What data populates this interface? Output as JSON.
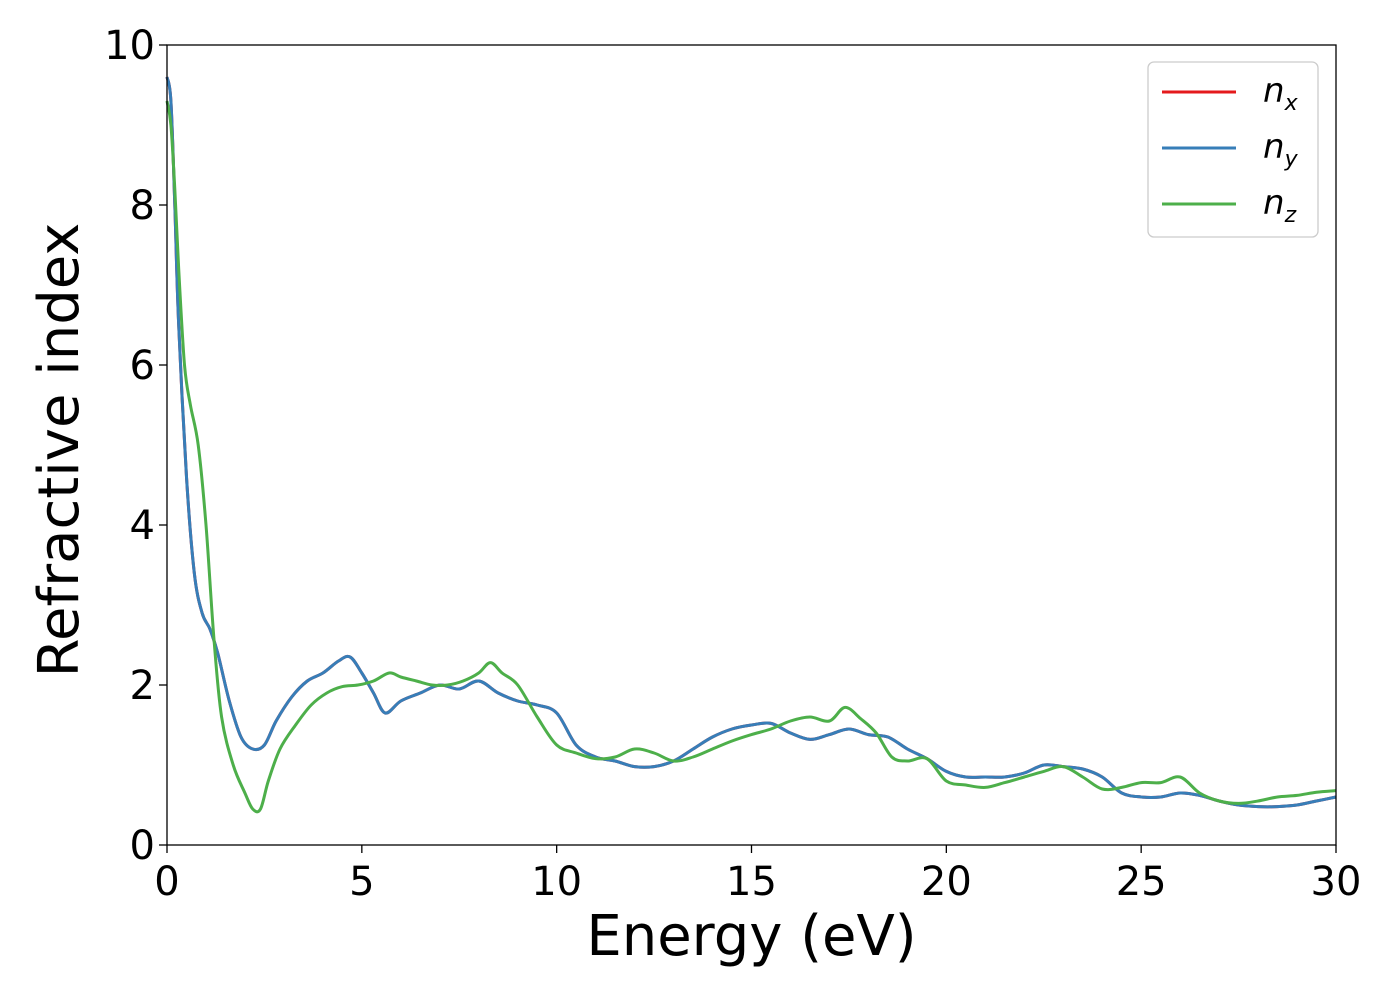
{
  "chart_data": {
    "type": "line",
    "xlabel": "Energy (eV)",
    "ylabel": "Refractive index",
    "xlim": [
      0,
      30
    ],
    "ylim": [
      0,
      10
    ],
    "xticks": [
      0,
      5,
      10,
      15,
      20,
      25,
      30
    ],
    "yticks": [
      0,
      2,
      4,
      6,
      8,
      10
    ],
    "grid": false,
    "legend_position": "top-right",
    "series": [
      {
        "name": "n",
        "subscript": "x",
        "color": "#e41a1c",
        "x": [
          0,
          0.1,
          0.2,
          0.3,
          0.5,
          0.7,
          0.9,
          1.1,
          1.3,
          1.6,
          1.9,
          2.2,
          2.5,
          2.8,
          3.2,
          3.6,
          4.0,
          4.4,
          4.7,
          5.0,
          5.3,
          5.6,
          6.0,
          6.5,
          7.0,
          7.5,
          8.0,
          8.5,
          9.0,
          9.5,
          10.0,
          10.5,
          11.0,
          11.5,
          12.0,
          12.5,
          13.0,
          13.5,
          14.0,
          14.5,
          15.0,
          15.5,
          16.0,
          16.5,
          17.0,
          17.5,
          18.0,
          18.5,
          19.0,
          19.5,
          20.0,
          20.5,
          21.0,
          21.5,
          22.0,
          22.5,
          23.0,
          23.5,
          24.0,
          24.5,
          25.0,
          25.5,
          26.0,
          26.5,
          27.0,
          27.5,
          28.0,
          28.5,
          29.0,
          29.5,
          30.0
        ],
        "y": [
          9.6,
          9.3,
          8.0,
          6.5,
          4.6,
          3.4,
          2.9,
          2.7,
          2.4,
          1.8,
          1.35,
          1.2,
          1.25,
          1.55,
          1.85,
          2.05,
          2.15,
          2.3,
          2.35,
          2.15,
          1.9,
          1.65,
          1.8,
          1.9,
          2.0,
          1.95,
          2.05,
          1.9,
          1.8,
          1.75,
          1.65,
          1.25,
          1.1,
          1.05,
          0.98,
          0.98,
          1.05,
          1.2,
          1.35,
          1.45,
          1.5,
          1.52,
          1.4,
          1.32,
          1.38,
          1.45,
          1.38,
          1.35,
          1.2,
          1.08,
          0.92,
          0.85,
          0.85,
          0.85,
          0.9,
          1.0,
          0.98,
          0.95,
          0.85,
          0.65,
          0.6,
          0.6,
          0.65,
          0.62,
          0.55,
          0.5,
          0.48,
          0.48,
          0.5,
          0.55,
          0.6
        ]
      },
      {
        "name": "n",
        "subscript": "y",
        "color": "#377eb8",
        "x": [
          0,
          0.1,
          0.2,
          0.3,
          0.5,
          0.7,
          0.9,
          1.1,
          1.3,
          1.6,
          1.9,
          2.2,
          2.5,
          2.8,
          3.2,
          3.6,
          4.0,
          4.4,
          4.7,
          5.0,
          5.3,
          5.6,
          6.0,
          6.5,
          7.0,
          7.5,
          8.0,
          8.5,
          9.0,
          9.5,
          10.0,
          10.5,
          11.0,
          11.5,
          12.0,
          12.5,
          13.0,
          13.5,
          14.0,
          14.5,
          15.0,
          15.5,
          16.0,
          16.5,
          17.0,
          17.5,
          18.0,
          18.5,
          19.0,
          19.5,
          20.0,
          20.5,
          21.0,
          21.5,
          22.0,
          22.5,
          23.0,
          23.5,
          24.0,
          24.5,
          25.0,
          25.5,
          26.0,
          26.5,
          27.0,
          27.5,
          28.0,
          28.5,
          29.0,
          29.5,
          30.0
        ],
        "y": [
          9.6,
          9.3,
          8.0,
          6.5,
          4.6,
          3.4,
          2.9,
          2.7,
          2.4,
          1.8,
          1.35,
          1.2,
          1.25,
          1.55,
          1.85,
          2.05,
          2.15,
          2.3,
          2.35,
          2.15,
          1.9,
          1.65,
          1.8,
          1.9,
          2.0,
          1.95,
          2.05,
          1.9,
          1.8,
          1.75,
          1.65,
          1.25,
          1.1,
          1.05,
          0.98,
          0.98,
          1.05,
          1.2,
          1.35,
          1.45,
          1.5,
          1.52,
          1.4,
          1.32,
          1.38,
          1.45,
          1.38,
          1.35,
          1.2,
          1.08,
          0.92,
          0.85,
          0.85,
          0.85,
          0.9,
          1.0,
          0.98,
          0.95,
          0.85,
          0.65,
          0.6,
          0.6,
          0.65,
          0.62,
          0.55,
          0.5,
          0.48,
          0.48,
          0.5,
          0.55,
          0.6
        ]
      },
      {
        "name": "n",
        "subscript": "z",
        "color": "#4daf4a",
        "x": [
          0,
          0.1,
          0.2,
          0.3,
          0.45,
          0.6,
          0.8,
          1.0,
          1.2,
          1.4,
          1.7,
          2.0,
          2.2,
          2.4,
          2.6,
          2.9,
          3.3,
          3.7,
          4.1,
          4.5,
          4.9,
          5.3,
          5.7,
          6.0,
          6.4,
          6.8,
          7.2,
          7.6,
          8.0,
          8.3,
          8.6,
          9.0,
          9.5,
          10.0,
          10.5,
          11.0,
          11.5,
          12.0,
          12.5,
          13.0,
          13.5,
          14.0,
          14.5,
          15.0,
          15.5,
          16.0,
          16.5,
          17.0,
          17.4,
          17.8,
          18.2,
          18.6,
          19.0,
          19.5,
          20.0,
          20.5,
          21.0,
          21.5,
          22.0,
          22.5,
          23.0,
          23.5,
          24.0,
          24.5,
          25.0,
          25.5,
          26.0,
          26.5,
          27.0,
          27.5,
          28.0,
          28.5,
          29.0,
          29.5,
          30.0
        ],
        "y": [
          9.3,
          9.0,
          8.2,
          7.2,
          6.0,
          5.5,
          5.0,
          4.0,
          2.6,
          1.6,
          1.0,
          0.65,
          0.45,
          0.45,
          0.8,
          1.2,
          1.5,
          1.75,
          1.9,
          1.98,
          2.0,
          2.05,
          2.15,
          2.1,
          2.05,
          2.0,
          2.0,
          2.05,
          2.15,
          2.28,
          2.15,
          2.0,
          1.6,
          1.25,
          1.15,
          1.08,
          1.1,
          1.2,
          1.15,
          1.05,
          1.1,
          1.2,
          1.3,
          1.38,
          1.45,
          1.55,
          1.6,
          1.55,
          1.72,
          1.58,
          1.4,
          1.1,
          1.05,
          1.08,
          0.8,
          0.75,
          0.72,
          0.78,
          0.85,
          0.92,
          0.98,
          0.85,
          0.7,
          0.72,
          0.78,
          0.78,
          0.85,
          0.65,
          0.55,
          0.52,
          0.55,
          0.6,
          0.62,
          0.66,
          0.68
        ]
      }
    ]
  }
}
